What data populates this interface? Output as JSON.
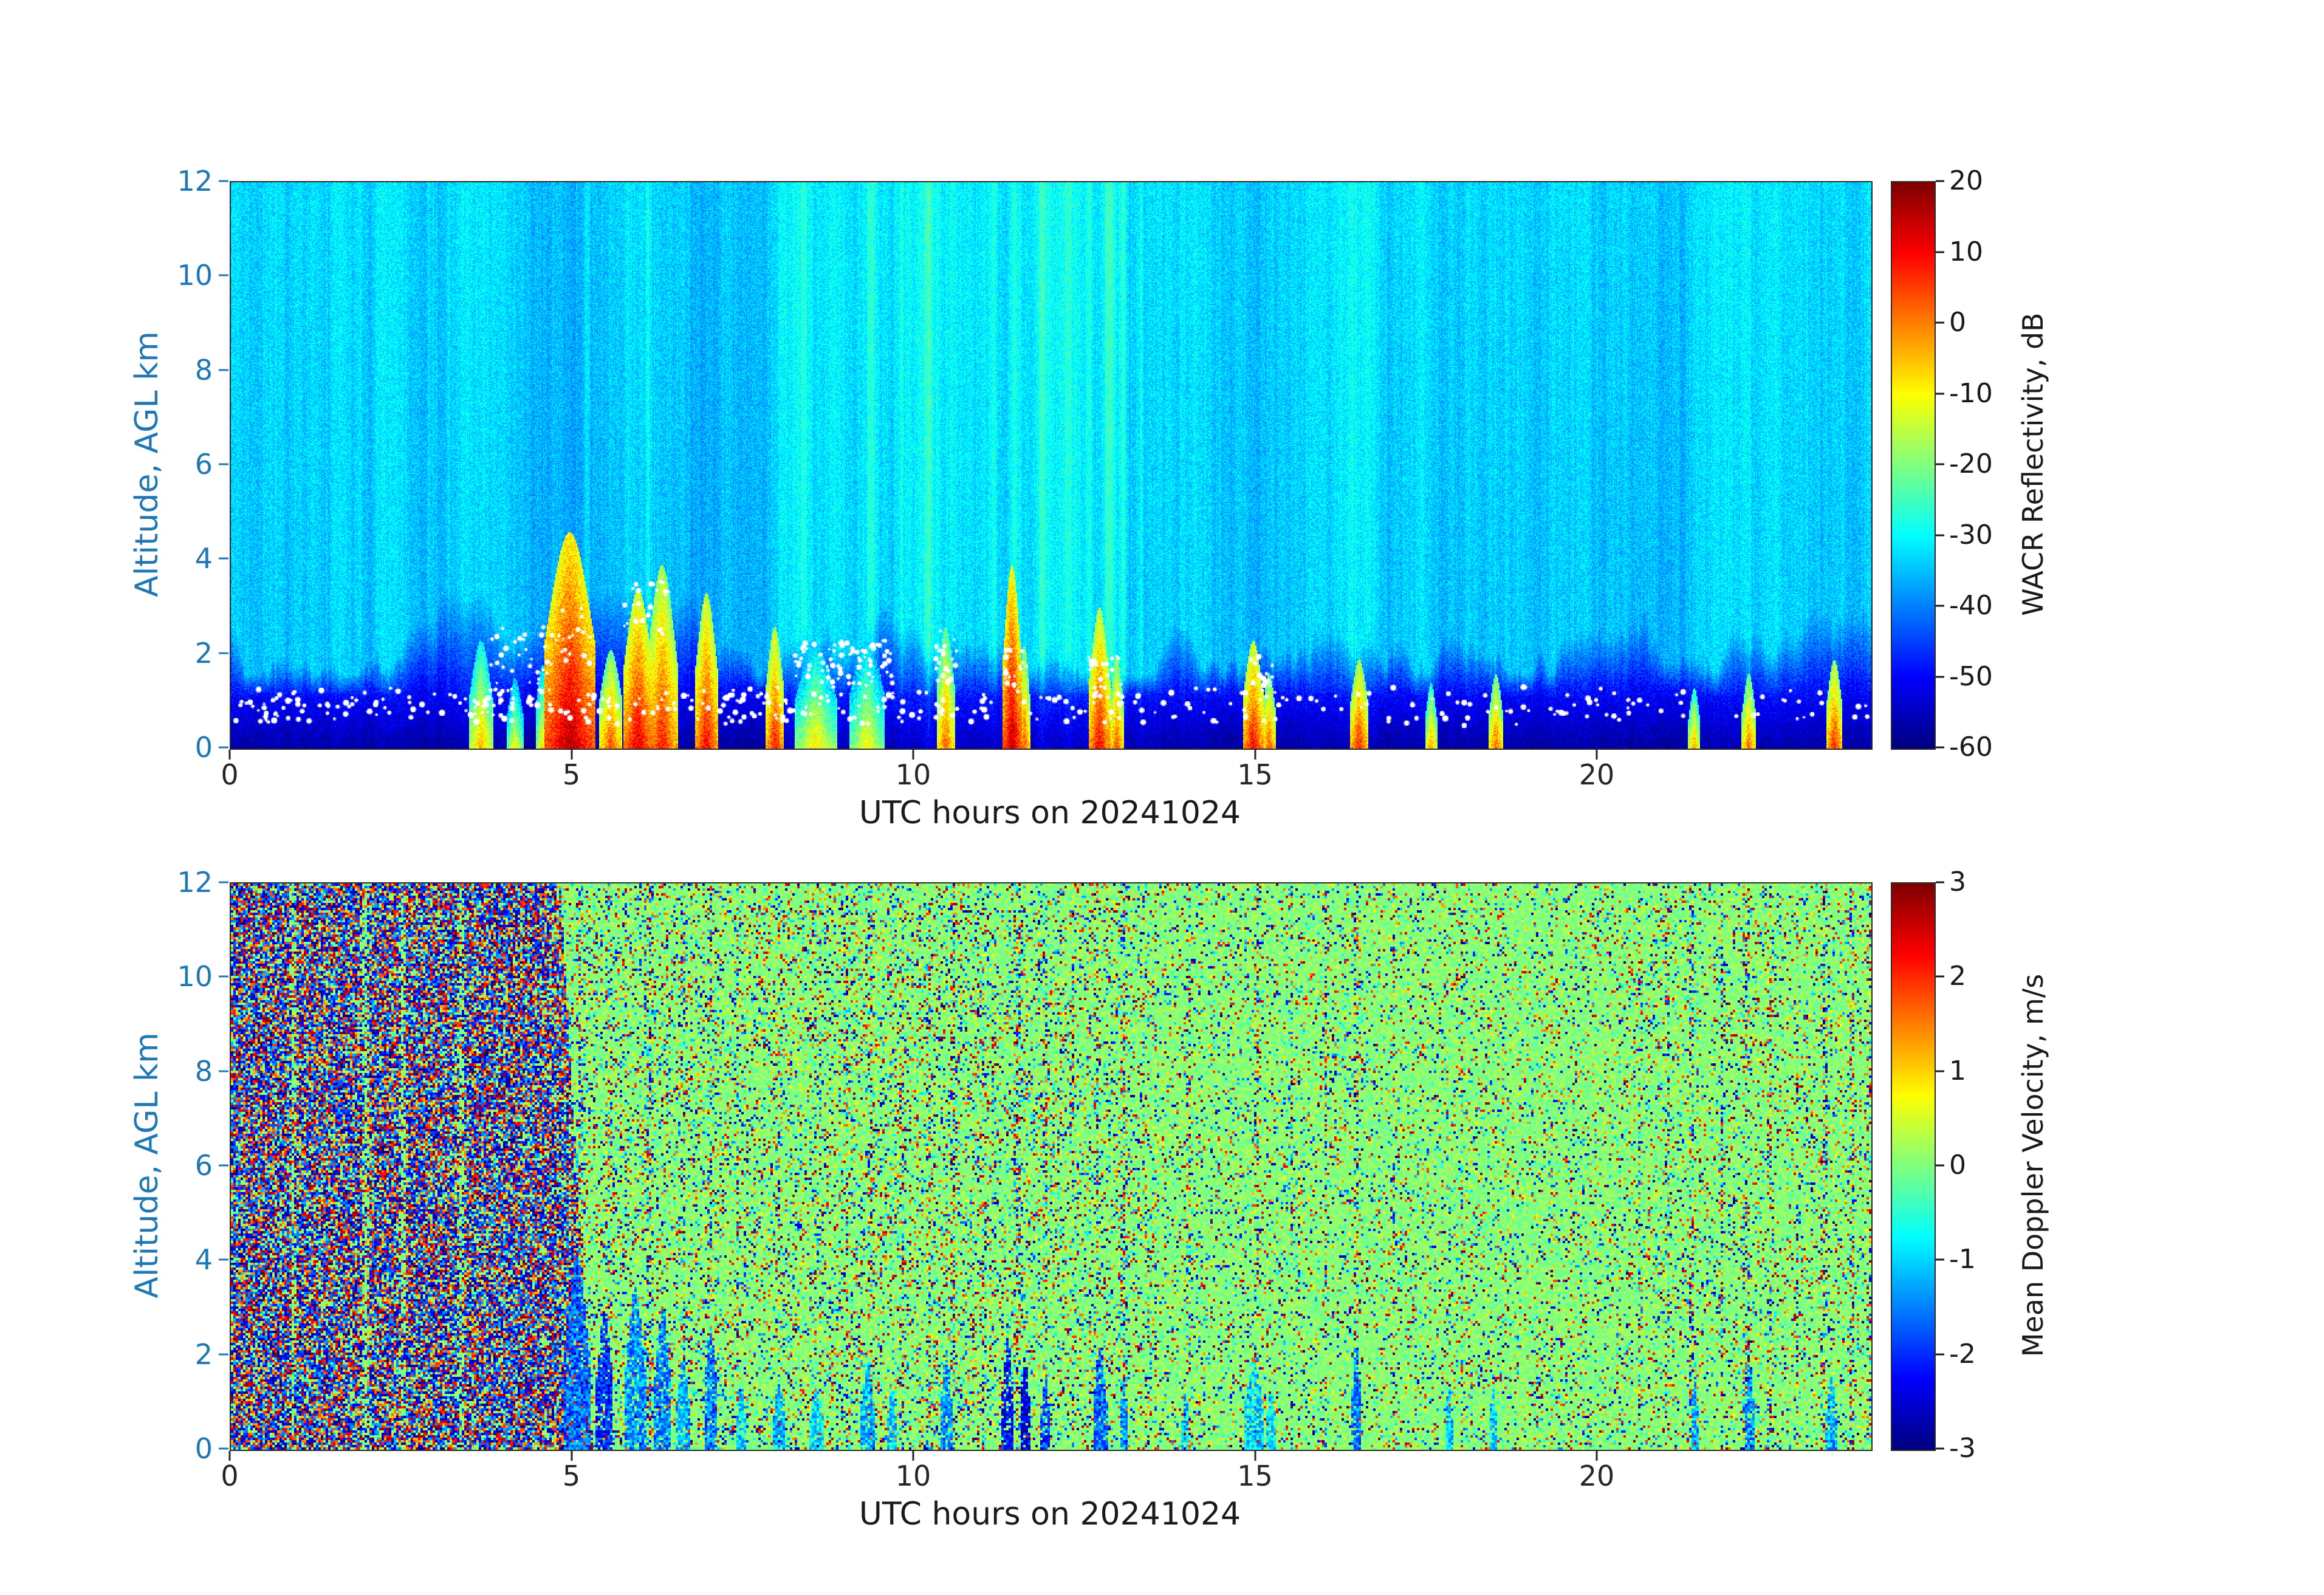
{
  "style": {
    "background": "#ffffff",
    "axis_label_color": "#1f77b4",
    "tick_text_color": "#262626",
    "colorbar_text_color": "#1a1a1a",
    "colormap": "jet"
  },
  "chart_data": [
    {
      "type": "heatmap",
      "name": "wacr-reflectivity",
      "xlabel": "UTC hours on 20241024",
      "ylabel": "Altitude, AGL km",
      "xlim": [
        0,
        24
      ],
      "ylim": [
        0,
        12
      ],
      "xticks": [
        0,
        5,
        10,
        15,
        20
      ],
      "yticks": [
        0,
        2,
        4,
        6,
        8,
        10,
        12
      ],
      "colorbar_label": "WACR Reflectivity, dB",
      "colorbar_range": [
        -60,
        20
      ],
      "colorbar_ticks": [
        20,
        10,
        0,
        -10,
        -20,
        -30,
        -40,
        -50,
        -60
      ],
      "clear_air_dB": -34,
      "surface_layer_dB": -56,
      "haze": {
        "t0": 8.0,
        "t1": 13.6,
        "amp": 1.5
      },
      "bright_columns": [
        {
          "t": 5.2,
          "w": 0.05,
          "amp": 3
        },
        {
          "t": 6.1,
          "w": 0.05,
          "amp": 3
        },
        {
          "t": 8.35,
          "w": 0.06,
          "amp": 3
        },
        {
          "t": 9.35,
          "w": 0.07,
          "amp": 4
        },
        {
          "t": 9.8,
          "w": 0.05,
          "amp": 3
        },
        {
          "t": 10.2,
          "w": 0.05,
          "amp": 3
        },
        {
          "t": 10.55,
          "w": 0.06,
          "amp": 4
        },
        {
          "t": 11.15,
          "w": 0.05,
          "amp": 3
        },
        {
          "t": 11.45,
          "w": 0.05,
          "amp": 4
        },
        {
          "t": 11.85,
          "w": 0.05,
          "amp": 5
        },
        {
          "t": 12.25,
          "w": 0.05,
          "amp": 4
        },
        {
          "t": 12.55,
          "w": 0.04,
          "amp": 5
        },
        {
          "t": 12.85,
          "w": 0.09,
          "amp": 8
        },
        {
          "t": 13.05,
          "w": 0.05,
          "amp": 6
        },
        {
          "t": 13.3,
          "w": 0.04,
          "amp": 3
        }
      ],
      "plumes": [
        {
          "t": 3.65,
          "w": 0.1,
          "top": 2.3,
          "peak": -4
        },
        {
          "t": 4.15,
          "w": 0.07,
          "top": 1.5,
          "peak": -10
        },
        {
          "t": 4.55,
          "w": 0.06,
          "top": 1.8,
          "peak": -8
        },
        {
          "t": 4.95,
          "w": 0.22,
          "top": 4.6,
          "peak": 16
        },
        {
          "t": 5.55,
          "w": 0.1,
          "top": 2.1,
          "peak": 4
        },
        {
          "t": 5.95,
          "w": 0.13,
          "top": 3.4,
          "peak": 12
        },
        {
          "t": 6.3,
          "w": 0.13,
          "top": 3.9,
          "peak": 8
        },
        {
          "t": 6.95,
          "w": 0.1,
          "top": 3.3,
          "peak": 10
        },
        {
          "t": 7.95,
          "w": 0.08,
          "top": 2.6,
          "peak": 8
        },
        {
          "t": 8.55,
          "w": 0.18,
          "top": 2.2,
          "peak": -8
        },
        {
          "t": 9.3,
          "w": 0.15,
          "top": 2.4,
          "peak": -10
        },
        {
          "t": 10.45,
          "w": 0.08,
          "top": 2.6,
          "peak": 2
        },
        {
          "t": 11.42,
          "w": 0.08,
          "top": 3.9,
          "peak": 15
        },
        {
          "t": 11.6,
          "w": 0.05,
          "top": 2.2,
          "peak": 4
        },
        {
          "t": 12.7,
          "w": 0.09,
          "top": 3.0,
          "peak": 10
        },
        {
          "t": 12.95,
          "w": 0.06,
          "top": 2.0,
          "peak": 4
        },
        {
          "t": 14.95,
          "w": 0.09,
          "top": 2.3,
          "peak": 10
        },
        {
          "t": 15.18,
          "w": 0.06,
          "top": 1.6,
          "peak": 4
        },
        {
          "t": 16.5,
          "w": 0.08,
          "top": 1.9,
          "peak": 7
        },
        {
          "t": 17.55,
          "w": 0.05,
          "top": 1.4,
          "peak": -2
        },
        {
          "t": 18.5,
          "w": 0.06,
          "top": 1.6,
          "peak": 3
        },
        {
          "t": 21.4,
          "w": 0.05,
          "top": 1.3,
          "peak": -2
        },
        {
          "t": 22.2,
          "w": 0.06,
          "top": 1.6,
          "peak": 2
        },
        {
          "t": 23.45,
          "w": 0.07,
          "top": 1.9,
          "peak": 7
        }
      ],
      "liquid_dots": {
        "base_alt_km": 0.9,
        "jitter_km": 0.55,
        "count": 470,
        "clusters": [
          {
            "t0": 3.8,
            "t1": 4.7,
            "h0": 1.1,
            "h1": 2.6,
            "n": 40
          },
          {
            "t0": 4.75,
            "t1": 5.25,
            "h0": 1.8,
            "h1": 3.0,
            "n": 18
          },
          {
            "t0": 5.7,
            "t1": 6.4,
            "h0": 2.4,
            "h1": 3.6,
            "n": 25
          },
          {
            "t0": 8.2,
            "t1": 9.7,
            "h0": 1.3,
            "h1": 2.3,
            "n": 80
          },
          {
            "t0": 10.3,
            "t1": 10.65,
            "h0": 1.4,
            "h1": 2.5,
            "n": 20
          },
          {
            "t0": 11.3,
            "t1": 11.65,
            "h0": 1.3,
            "h1": 2.1,
            "n": 18
          },
          {
            "t0": 12.55,
            "t1": 13.05,
            "h0": 1.1,
            "h1": 2.0,
            "n": 22
          },
          {
            "t0": 14.85,
            "t1": 15.25,
            "h0": 1.1,
            "h1": 2.0,
            "n": 18
          }
        ]
      }
    },
    {
      "type": "heatmap",
      "name": "mean-doppler-velocity",
      "xlabel": "UTC hours on 20241024",
      "ylabel": "Altitude, AGL km",
      "xlim": [
        0,
        24
      ],
      "ylim": [
        0,
        12
      ],
      "xticks": [
        0,
        5,
        10,
        15,
        20
      ],
      "yticks": [
        0,
        2,
        4,
        6,
        8,
        10,
        12
      ],
      "colorbar_label": "Mean Doppler Velocity, m/s",
      "colorbar_range": [
        -3,
        3
      ],
      "colorbar_ticks": [
        3,
        2,
        1,
        0,
        -1,
        -2,
        -3
      ],
      "background_velocity": 0.05,
      "noise_region": {
        "end_hour_top": 4.8,
        "slope_per_km": 0.04,
        "density": 0.78
      },
      "gaps": [
        {
          "t": 0.9,
          "w": 0.03
        },
        {
          "t": 1.95,
          "w": 0.05
        },
        {
          "t": 2.5,
          "w": 0.04
        },
        {
          "t": 3.35,
          "w": 0.04
        }
      ],
      "speckle_stripes": [
        {
          "t": 5.1,
          "w": 0.07,
          "p": 0.5
        },
        {
          "t": 5.5,
          "w": 0.05,
          "p": 0.45
        },
        {
          "t": 6.1,
          "w": 0.09,
          "p": 0.5
        },
        {
          "t": 6.6,
          "w": 0.05,
          "p": 0.45
        },
        {
          "t": 7.0,
          "w": 0.05,
          "p": 0.5
        },
        {
          "t": 7.4,
          "w": 0.04,
          "p": 0.4
        },
        {
          "t": 8.0,
          "w": 0.05,
          "p": 0.38
        },
        {
          "t": 8.6,
          "w": 0.04,
          "p": 0.35
        },
        {
          "t": 9.0,
          "w": 0.05,
          "p": 0.45
        },
        {
          "t": 9.35,
          "w": 0.05,
          "p": 0.5
        },
        {
          "t": 9.8,
          "w": 0.04,
          "p": 0.4
        },
        {
          "t": 10.2,
          "w": 0.05,
          "p": 0.45
        },
        {
          "t": 10.55,
          "w": 0.06,
          "p": 0.5
        },
        {
          "t": 11.0,
          "w": 0.05,
          "p": 0.4
        },
        {
          "t": 11.5,
          "w": 0.08,
          "p": 0.55
        },
        {
          "t": 11.9,
          "w": 0.05,
          "p": 0.45
        },
        {
          "t": 12.3,
          "w": 0.04,
          "p": 0.4
        },
        {
          "t": 12.65,
          "w": 0.05,
          "p": 0.5
        },
        {
          "t": 13.05,
          "w": 0.07,
          "p": 0.5
        },
        {
          "t": 13.5,
          "w": 0.04,
          "p": 0.35
        },
        {
          "t": 14.0,
          "w": 0.05,
          "p": 0.4
        },
        {
          "t": 15.0,
          "w": 0.05,
          "p": 0.4
        },
        {
          "t": 15.5,
          "w": 0.04,
          "p": 0.35
        },
        {
          "t": 16.0,
          "w": 0.04,
          "p": 0.4
        },
        {
          "t": 16.45,
          "w": 0.05,
          "p": 0.45
        },
        {
          "t": 17.0,
          "w": 0.04,
          "p": 0.35
        },
        {
          "t": 18.0,
          "w": 0.04,
          "p": 0.35
        },
        {
          "t": 19.3,
          "w": 0.03,
          "p": 0.3
        },
        {
          "t": 20.6,
          "w": 0.04,
          "p": 0.35
        },
        {
          "t": 21.0,
          "w": 0.05,
          "p": 0.45
        },
        {
          "t": 21.35,
          "w": 0.05,
          "p": 0.5
        },
        {
          "t": 21.8,
          "w": 0.04,
          "p": 0.4
        },
        {
          "t": 22.15,
          "w": 0.06,
          "p": 0.5
        },
        {
          "t": 22.5,
          "w": 0.05,
          "p": 0.45
        },
        {
          "t": 22.9,
          "w": 0.04,
          "p": 0.4
        },
        {
          "t": 23.3,
          "w": 0.06,
          "p": 0.5
        },
        {
          "t": 23.7,
          "w": 0.05,
          "p": 0.45
        },
        {
          "t": 23.95,
          "w": 0.04,
          "p": 0.45
        }
      ],
      "downdrafts": [
        {
          "t": 5.05,
          "w": 0.15,
          "top": 4.2,
          "v": -1.6
        },
        {
          "t": 5.45,
          "w": 0.1,
          "top": 3.0,
          "v": -2.0
        },
        {
          "t": 5.9,
          "w": 0.12,
          "top": 3.5,
          "v": -1.4
        },
        {
          "t": 6.3,
          "w": 0.1,
          "top": 3.0,
          "v": -1.5
        },
        {
          "t": 6.6,
          "w": 0.08,
          "top": 2.0,
          "v": -1.2
        },
        {
          "t": 7.0,
          "w": 0.08,
          "top": 2.6,
          "v": -1.5
        },
        {
          "t": 7.45,
          "w": 0.05,
          "top": 1.4,
          "v": -1.0
        },
        {
          "t": 8.0,
          "w": 0.06,
          "top": 1.6,
          "v": -1.2
        },
        {
          "t": 8.55,
          "w": 0.08,
          "top": 1.4,
          "v": -0.9
        },
        {
          "t": 9.3,
          "w": 0.08,
          "top": 1.9,
          "v": -1.2
        },
        {
          "t": 9.65,
          "w": 0.05,
          "top": 1.4,
          "v": -1.0
        },
        {
          "t": 10.45,
          "w": 0.07,
          "top": 2.1,
          "v": -1.4
        },
        {
          "t": 11.35,
          "w": 0.07,
          "top": 2.4,
          "v": -2.2
        },
        {
          "t": 11.6,
          "w": 0.06,
          "top": 2.0,
          "v": -2.4
        },
        {
          "t": 11.9,
          "w": 0.05,
          "top": 1.6,
          "v": -1.8
        },
        {
          "t": 12.7,
          "w": 0.08,
          "top": 2.2,
          "v": -1.6
        },
        {
          "t": 13.05,
          "w": 0.05,
          "top": 1.5,
          "v": -1.3
        },
        {
          "t": 13.95,
          "w": 0.04,
          "top": 1.3,
          "v": -1.1
        },
        {
          "t": 14.95,
          "w": 0.12,
          "top": 1.9,
          "v": -1.0
        },
        {
          "t": 15.2,
          "w": 0.06,
          "top": 1.3,
          "v": -0.9
        },
        {
          "t": 16.45,
          "w": 0.06,
          "top": 2.2,
          "v": -1.5
        },
        {
          "t": 17.8,
          "w": 0.04,
          "top": 1.4,
          "v": -1.1
        },
        {
          "t": 18.45,
          "w": 0.05,
          "top": 1.3,
          "v": -1.0
        },
        {
          "t": 21.4,
          "w": 0.05,
          "top": 1.5,
          "v": -1.2
        },
        {
          "t": 22.2,
          "w": 0.06,
          "top": 1.9,
          "v": -1.4
        },
        {
          "t": 23.4,
          "w": 0.06,
          "top": 1.6,
          "v": -1.3
        }
      ]
    }
  ]
}
